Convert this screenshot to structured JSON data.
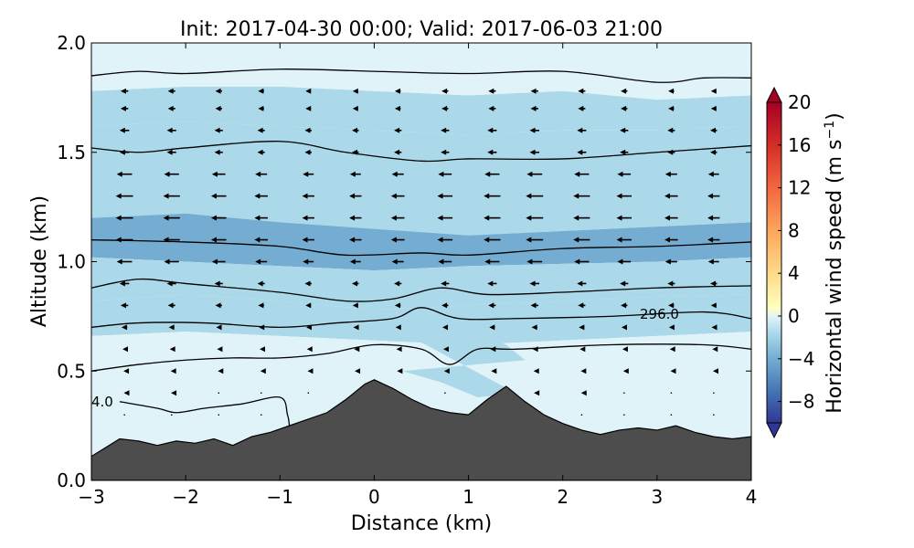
{
  "chart_data": {
    "type": "heatmap",
    "title": "Init: 2017-04-30 00:00; Valid: 2017-06-03 21:00",
    "xlabel": "Distance (km)",
    "ylabel": "Altitude (km)",
    "xlim": [
      -3,
      4
    ],
    "ylim": [
      0.0,
      2.0
    ],
    "x_ticks": [
      -3,
      -2,
      -1,
      0,
      1,
      2,
      3,
      4
    ],
    "x_tick_labels": [
      "−3",
      "−2",
      "−1",
      "0",
      "1",
      "2",
      "3",
      "4"
    ],
    "y_ticks": [
      0.0,
      0.5,
      1.0,
      1.5,
      2.0
    ],
    "y_tick_labels": [
      "0.0",
      "0.5",
      "1.0",
      "1.5",
      "2.0"
    ],
    "colorbar": {
      "label": "Horizontal wind speed (m s⁻¹)",
      "label_text": "Horizontal wind speed (m s",
      "label_sup": "−1",
      "label_close": ")",
      "range": [
        -10,
        20
      ],
      "ticks": [
        -8,
        -4,
        0,
        4,
        8,
        12,
        16,
        20
      ],
      "tick_labels": [
        "−8",
        "−4",
        "0",
        "4",
        "8",
        "12",
        "16",
        "20"
      ],
      "extend": "both",
      "colors": [
        "#313695",
        "#4575b4",
        "#74add1",
        "#abd9e9",
        "#e0f3f8",
        "#ffffbf",
        "#fee090",
        "#fdae61",
        "#f46d43",
        "#d73027",
        "#a50026"
      ]
    },
    "contour_labels": [
      "296.0",
      "4.0"
    ],
    "terrain": {
      "color": "#4d4d4d",
      "points": [
        [
          -3,
          0.11
        ],
        [
          -2.85,
          0.15
        ],
        [
          -2.7,
          0.19
        ],
        [
          -2.5,
          0.18
        ],
        [
          -2.3,
          0.16
        ],
        [
          -2.1,
          0.18
        ],
        [
          -1.9,
          0.17
        ],
        [
          -1.7,
          0.19
        ],
        [
          -1.5,
          0.16
        ],
        [
          -1.3,
          0.2
        ],
        [
          -1.1,
          0.22
        ],
        [
          -0.9,
          0.25
        ],
        [
          -0.7,
          0.28
        ],
        [
          -0.5,
          0.31
        ],
        [
          -0.3,
          0.37
        ],
        [
          -0.1,
          0.44
        ],
        [
          0.0,
          0.46
        ],
        [
          0.2,
          0.42
        ],
        [
          0.4,
          0.37
        ],
        [
          0.6,
          0.33
        ],
        [
          0.8,
          0.31
        ],
        [
          1.0,
          0.3
        ],
        [
          1.2,
          0.37
        ],
        [
          1.4,
          0.43
        ],
        [
          1.6,
          0.36
        ],
        [
          1.8,
          0.3
        ],
        [
          2.0,
          0.26
        ],
        [
          2.2,
          0.23
        ],
        [
          2.4,
          0.21
        ],
        [
          2.6,
          0.23
        ],
        [
          2.8,
          0.24
        ],
        [
          3.0,
          0.23
        ],
        [
          3.2,
          0.25
        ],
        [
          3.4,
          0.22
        ],
        [
          3.6,
          0.2
        ],
        [
          3.8,
          0.19
        ],
        [
          4.0,
          0.2
        ]
      ]
    },
    "theta_contours": [
      {
        "points": [
          [
            -3,
            1.85
          ],
          [
            -2.5,
            1.87
          ],
          [
            -2,
            1.86
          ],
          [
            -1,
            1.88
          ],
          [
            0,
            1.87
          ],
          [
            1,
            1.86
          ],
          [
            2,
            1.87
          ],
          [
            3,
            1.82
          ],
          [
            3.5,
            1.84
          ],
          [
            4,
            1.84
          ]
        ]
      },
      {
        "points": [
          [
            -3,
            1.52
          ],
          [
            -2.5,
            1.5
          ],
          [
            -2,
            1.52
          ],
          [
            -1,
            1.55
          ],
          [
            -0.3,
            1.5
          ],
          [
            0.5,
            1.46
          ],
          [
            1,
            1.47
          ],
          [
            2,
            1.47
          ],
          [
            3,
            1.5
          ],
          [
            4,
            1.53
          ]
        ]
      },
      {
        "points": [
          [
            -3,
            1.1
          ],
          [
            -2,
            1.09
          ],
          [
            -1,
            1.07
          ],
          [
            -0.3,
            1.03
          ],
          [
            0.5,
            1.04
          ],
          [
            1,
            1.03
          ],
          [
            2,
            1.06
          ],
          [
            3,
            1.07
          ],
          [
            4,
            1.09
          ]
        ]
      },
      {
        "points": [
          [
            -3,
            0.88
          ],
          [
            -2.5,
            0.92
          ],
          [
            -2,
            0.9
          ],
          [
            -1,
            0.86
          ],
          [
            -0.3,
            0.82
          ],
          [
            0.2,
            0.83
          ],
          [
            0.7,
            0.88
          ],
          [
            1.2,
            0.85
          ],
          [
            2,
            0.86
          ],
          [
            3,
            0.88
          ],
          [
            4,
            0.89
          ]
        ]
      },
      {
        "points": [
          [
            -3,
            0.7
          ],
          [
            -2.5,
            0.72
          ],
          [
            -1.8,
            0.72
          ],
          [
            -1,
            0.7
          ],
          [
            -0.4,
            0.72
          ],
          [
            0.2,
            0.74
          ],
          [
            0.5,
            0.79
          ],
          [
            0.9,
            0.74
          ],
          [
            1.5,
            0.74
          ],
          [
            2.5,
            0.75
          ],
          [
            3.5,
            0.77
          ],
          [
            4,
            0.74
          ]
        ]
      },
      {
        "points": [
          [
            -3,
            0.5
          ],
          [
            -2.5,
            0.53
          ],
          [
            -2,
            0.55
          ],
          [
            -1.5,
            0.56
          ],
          [
            -1,
            0.56
          ],
          [
            -0.5,
            0.58
          ],
          [
            0,
            0.62
          ],
          [
            0.5,
            0.6
          ],
          [
            0.8,
            0.53
          ],
          [
            1.1,
            0.6
          ],
          [
            1.5,
            0.6
          ],
          [
            2.5,
            0.62
          ],
          [
            3.5,
            0.62
          ],
          [
            4,
            0.6
          ]
        ]
      },
      {
        "points": [
          [
            -2.7,
            0.36
          ],
          [
            -2.3,
            0.33
          ],
          [
            -2.1,
            0.31
          ],
          [
            -1.8,
            0.33
          ],
          [
            -1.4,
            0.35
          ],
          [
            -1.0,
            0.38
          ],
          [
            -0.92,
            0.3
          ],
          [
            -0.9,
            0.25
          ]
        ]
      }
    ],
    "shading_bands": [
      {
        "value": 2,
        "top": [
          [
            -3,
            2.0
          ],
          [
            4,
            2.0
          ]
        ],
        "bottom": [
          [
            -3,
            1.92
          ],
          [
            -2,
            1.93
          ],
          [
            -1,
            1.9
          ],
          [
            0,
            1.92
          ],
          [
            1,
            1.9
          ],
          [
            2,
            1.93
          ],
          [
            3,
            1.9
          ],
          [
            4,
            1.92
          ]
        ]
      },
      {
        "value": 0.5,
        "top": [
          [
            -3,
            1.92
          ],
          [
            -2,
            1.93
          ],
          [
            -1,
            1.9
          ],
          [
            0,
            1.92
          ],
          [
            1,
            1.9
          ],
          [
            2,
            1.93
          ],
          [
            3,
            1.9
          ],
          [
            4,
            1.92
          ]
        ],
        "bottom": [
          [
            -3,
            1.78
          ],
          [
            -2,
            1.8
          ],
          [
            -1,
            1.8
          ],
          [
            0,
            1.78
          ],
          [
            1,
            1.76
          ],
          [
            2,
            1.78
          ],
          [
            3,
            1.74
          ],
          [
            4,
            1.76
          ]
        ]
      },
      {
        "value": -1,
        "top": [
          [
            -3,
            1.78
          ],
          [
            -2,
            1.8
          ],
          [
            -1,
            1.8
          ],
          [
            0,
            1.78
          ],
          [
            1,
            1.76
          ],
          [
            2,
            1.78
          ],
          [
            3,
            1.74
          ],
          [
            4,
            1.76
          ]
        ],
        "bottom": [
          [
            -3,
            1.62
          ],
          [
            -2,
            1.64
          ],
          [
            -1,
            1.62
          ],
          [
            0,
            1.6
          ],
          [
            1,
            1.58
          ],
          [
            2,
            1.6
          ],
          [
            3,
            1.6
          ],
          [
            4,
            1.62
          ]
        ]
      },
      {
        "value": -2.5,
        "top": [
          [
            -3,
            1.62
          ],
          [
            -2,
            1.64
          ],
          [
            -1,
            1.62
          ],
          [
            0,
            1.6
          ],
          [
            1,
            1.58
          ],
          [
            2,
            1.6
          ],
          [
            3,
            1.6
          ],
          [
            4,
            1.62
          ]
        ],
        "bottom": [
          [
            -3,
            1.2
          ],
          [
            -2,
            1.22
          ],
          [
            -1,
            1.18
          ],
          [
            0,
            1.15
          ],
          [
            1,
            1.12
          ],
          [
            2,
            1.14
          ],
          [
            3,
            1.16
          ],
          [
            4,
            1.18
          ]
        ]
      },
      {
        "value": -3.5,
        "top": [
          [
            -3,
            1.2
          ],
          [
            -2,
            1.22
          ],
          [
            -1,
            1.18
          ],
          [
            0,
            1.15
          ],
          [
            1,
            1.12
          ],
          [
            2,
            1.14
          ],
          [
            3,
            1.16
          ],
          [
            4,
            1.18
          ]
        ],
        "bottom": [
          [
            -3,
            1.02
          ],
          [
            -2,
            1.0
          ],
          [
            -1,
            0.98
          ],
          [
            0,
            0.96
          ],
          [
            1,
            0.98
          ],
          [
            2,
            0.99
          ],
          [
            3,
            1.0
          ],
          [
            4,
            1.02
          ]
        ]
      },
      {
        "value": -2,
        "top": [
          [
            -3,
            1.02
          ],
          [
            -2,
            1.0
          ],
          [
            -1,
            0.98
          ],
          [
            0,
            0.96
          ],
          [
            1,
            0.98
          ],
          [
            2,
            0.99
          ],
          [
            3,
            1.0
          ],
          [
            4,
            1.02
          ]
        ],
        "bottom": [
          [
            -3,
            0.82
          ],
          [
            -2,
            0.85
          ],
          [
            -1,
            0.82
          ],
          [
            0,
            0.78
          ],
          [
            1,
            0.8
          ],
          [
            2,
            0.82
          ],
          [
            3,
            0.84
          ],
          [
            4,
            0.85
          ]
        ]
      },
      {
        "value": -0.8,
        "top": [
          [
            -3,
            0.82
          ],
          [
            -2,
            0.85
          ],
          [
            -1,
            0.82
          ],
          [
            0,
            0.78
          ],
          [
            1,
            0.8
          ],
          [
            2,
            0.82
          ],
          [
            3,
            0.84
          ],
          [
            4,
            0.85
          ]
        ],
        "bottom": [
          [
            -3,
            0.66
          ],
          [
            -2,
            0.68
          ],
          [
            -1,
            0.66
          ],
          [
            0,
            0.64
          ],
          [
            1,
            0.62
          ],
          [
            2,
            0.64
          ],
          [
            3,
            0.66
          ],
          [
            4,
            0.68
          ]
        ]
      },
      {
        "value": 0.8,
        "top": [
          [
            -3,
            0.66
          ],
          [
            -2,
            0.68
          ],
          [
            -1,
            0.66
          ],
          [
            0,
            0.64
          ],
          [
            1,
            0.62
          ],
          [
            2,
            0.64
          ],
          [
            3,
            0.66
          ],
          [
            4,
            0.68
          ]
        ],
        "bottom": [
          [
            -3,
            0.0
          ],
          [
            4,
            0.0
          ]
        ]
      },
      {
        "value": 2.2,
        "top": [
          [
            -3,
            0.4
          ],
          [
            -2.5,
            0.42
          ],
          [
            -2,
            0.4
          ],
          [
            -1.5,
            0.36
          ],
          [
            -1,
            0.34
          ],
          [
            -0.8,
            0.3
          ]
        ],
        "bottom": [
          [
            -0.8,
            0.25
          ],
          [
            -1.5,
            0.2
          ],
          [
            -2.5,
            0.2
          ],
          [
            -3,
            0.15
          ]
        ]
      },
      {
        "value": -1.8,
        "top": [
          [
            0.2,
            0.7
          ],
          [
            0.6,
            0.74
          ],
          [
            1.0,
            0.7
          ],
          [
            1.4,
            0.62
          ],
          [
            1.6,
            0.55
          ]
        ],
        "bottom": [
          [
            1.5,
            0.4
          ],
          [
            1.1,
            0.38
          ],
          [
            0.7,
            0.45
          ],
          [
            0.3,
            0.5
          ]
        ]
      }
    ],
    "wind_vectors": {
      "x": [
        -2.65,
        -2.15,
        -1.65,
        -1.2,
        -0.7,
        -0.2,
        0.25,
        0.75,
        1.25,
        1.7,
        2.2,
        2.65,
        3.15,
        3.6
      ],
      "y": [
        1.78,
        1.7,
        1.6,
        1.5,
        1.4,
        1.3,
        1.2,
        1.1,
        1.0,
        0.9,
        0.8,
        0.7,
        0.6,
        0.5,
        0.4,
        0.3,
        0.2
      ],
      "surface_u": [
        -2,
        -2,
        -2.5,
        -2.5,
        -4,
        -4.5,
        -4.5,
        -4.5,
        -4,
        -2.5,
        -2,
        -1.5,
        -1,
        -0.5,
        -0.3,
        -0.1,
        0
      ],
      "surface_v": [
        0,
        0,
        0,
        0,
        0,
        0,
        0,
        0,
        0,
        0,
        0,
        0,
        0,
        0,
        0,
        0,
        0
      ]
    }
  }
}
